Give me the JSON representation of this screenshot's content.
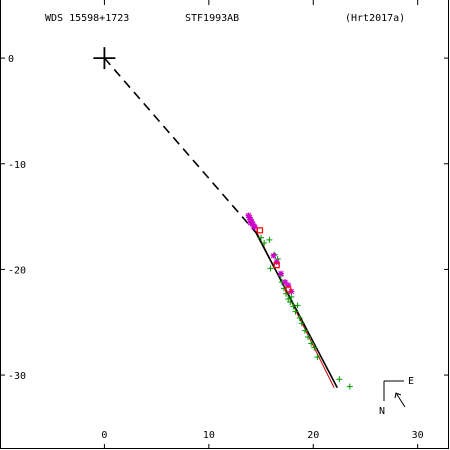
{
  "header": {
    "left": "WDS 15598+1723",
    "center": "STF1993AB",
    "right": "(Hrt2017a)"
  },
  "compass": {
    "east": "E",
    "north": "N"
  },
  "colors": {
    "axis": "#000000",
    "orbit": "#000000",
    "alt_orbit": "#cc0000",
    "obs_micrometer": "#009900",
    "obs_speckle": "#cc00cc",
    "obs_other": "#ff0000"
  },
  "chart_data": {
    "type": "scatter",
    "title": "",
    "xlabel": "",
    "ylabel": "",
    "xlim": [
      -10,
      33
    ],
    "ylim": [
      -37,
      5.5
    ],
    "x_ticks": [
      0,
      10,
      20,
      30
    ],
    "y_ticks": [
      0,
      -10,
      -20,
      -30
    ],
    "primary_star": {
      "x": 0,
      "y": 0
    },
    "node_line": {
      "from": [
        0,
        0
      ],
      "to": [
        14.5,
        -16.5
      ]
    },
    "orbit_main": {
      "from": [
        14.5,
        -16.5
      ],
      "to": [
        22.3,
        -31.2
      ]
    },
    "orbit_alt": {
      "from": [
        14.5,
        -16.3
      ],
      "to": [
        22.0,
        -31.2
      ]
    },
    "series": [
      {
        "marker": "plus",
        "points": [
          [
            15.0,
            -17.0
          ],
          [
            15.3,
            -17.5
          ],
          [
            15.8,
            -17.2
          ],
          [
            15.9,
            -19.9
          ],
          [
            16.3,
            -18.6
          ],
          [
            16.6,
            -19.0
          ],
          [
            16.9,
            -20.6
          ],
          [
            17.0,
            -21.2
          ],
          [
            17.2,
            -21.8
          ],
          [
            17.4,
            -22.3
          ],
          [
            17.6,
            -22.8
          ],
          [
            17.8,
            -23.1
          ],
          [
            17.9,
            -22.6
          ],
          [
            18.1,
            -23.5
          ],
          [
            18.3,
            -24.0
          ],
          [
            18.5,
            -23.4
          ],
          [
            18.7,
            -24.6
          ],
          [
            18.9,
            -25.1
          ],
          [
            19.2,
            -25.8
          ],
          [
            19.5,
            -26.4
          ],
          [
            19.8,
            -27.0
          ],
          [
            20.1,
            -27.4
          ],
          [
            20.4,
            -28.3
          ],
          [
            22.5,
            -30.4
          ],
          [
            23.5,
            -31.1
          ]
        ]
      },
      {
        "marker": "star",
        "points": [
          [
            13.8,
            -14.9
          ],
          [
            13.9,
            -15.1
          ],
          [
            14.0,
            -15.3
          ],
          [
            14.1,
            -15.5
          ],
          [
            14.2,
            -15.7
          ],
          [
            14.3,
            -15.9
          ],
          [
            14.4,
            -16.0
          ],
          [
            14.0,
            -15.6
          ],
          [
            16.2,
            -18.7
          ],
          [
            16.5,
            -19.3
          ],
          [
            16.9,
            -20.4
          ],
          [
            17.3,
            -21.2
          ],
          [
            17.6,
            -21.5
          ],
          [
            17.9,
            -22.1
          ]
        ]
      },
      {
        "marker": "square",
        "points": [
          [
            14.9,
            -16.3
          ],
          [
            16.5,
            -19.6
          ],
          [
            17.6,
            -21.9
          ]
        ]
      }
    ]
  }
}
